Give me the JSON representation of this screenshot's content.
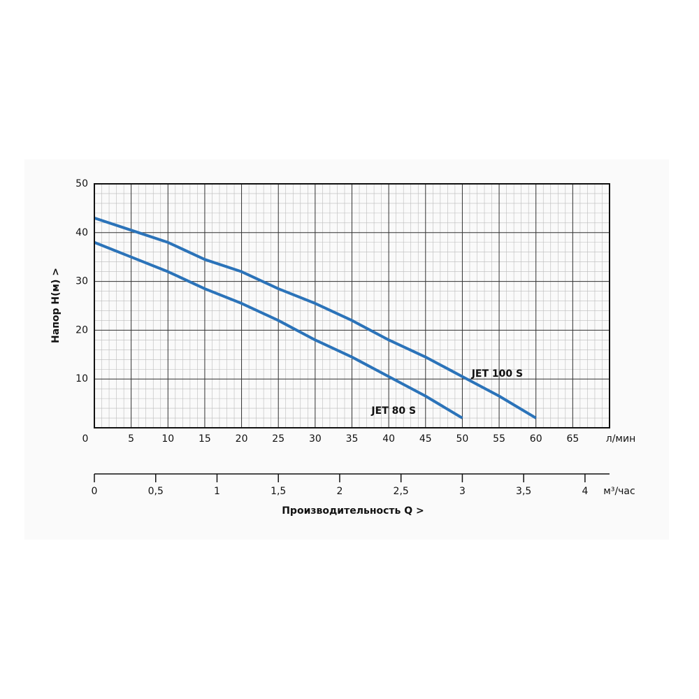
{
  "chart_data": {
    "type": "line",
    "ylabel": "Напор   H(м)  >",
    "xlabel": "Производительность Q  >",
    "xunit": "л/мин",
    "x2unit": "м³/час",
    "xlim": [
      0,
      70
    ],
    "xticks": [
      0,
      5,
      10,
      15,
      20,
      25,
      30,
      35,
      40,
      45,
      50,
      55,
      60,
      65
    ],
    "x2lim": [
      0,
      4.2
    ],
    "x2ticks": [
      0,
      {
        "value": 0.5,
        "label": "0,5"
      },
      1,
      {
        "value": 1.5,
        "label": "1,5"
      },
      2,
      {
        "value": 2.5,
        "label": "2,5"
      },
      3,
      {
        "value": 3.5,
        "label": "3,5"
      },
      4
    ],
    "ylim": [
      0,
      50
    ],
    "yticks": [
      10,
      20,
      30,
      40,
      50
    ],
    "grid": true,
    "x": [
      0,
      5,
      10,
      15,
      20,
      25,
      30,
      35,
      40,
      45,
      50,
      55,
      60
    ],
    "series": [
      {
        "name": "JET 100 S",
        "color": "#2b73b9",
        "values": [
          43,
          40.5,
          38,
          34.5,
          32,
          28.5,
          25.5,
          22,
          18,
          14.5,
          10.5,
          6.5,
          2
        ]
      },
      {
        "name": "JET 80 S",
        "color": "#2b73b9",
        "values": [
          38,
          35,
          32,
          28.5,
          25.5,
          22,
          18,
          14.5,
          10.5,
          6.5,
          2,
          null,
          null
        ]
      }
    ]
  }
}
